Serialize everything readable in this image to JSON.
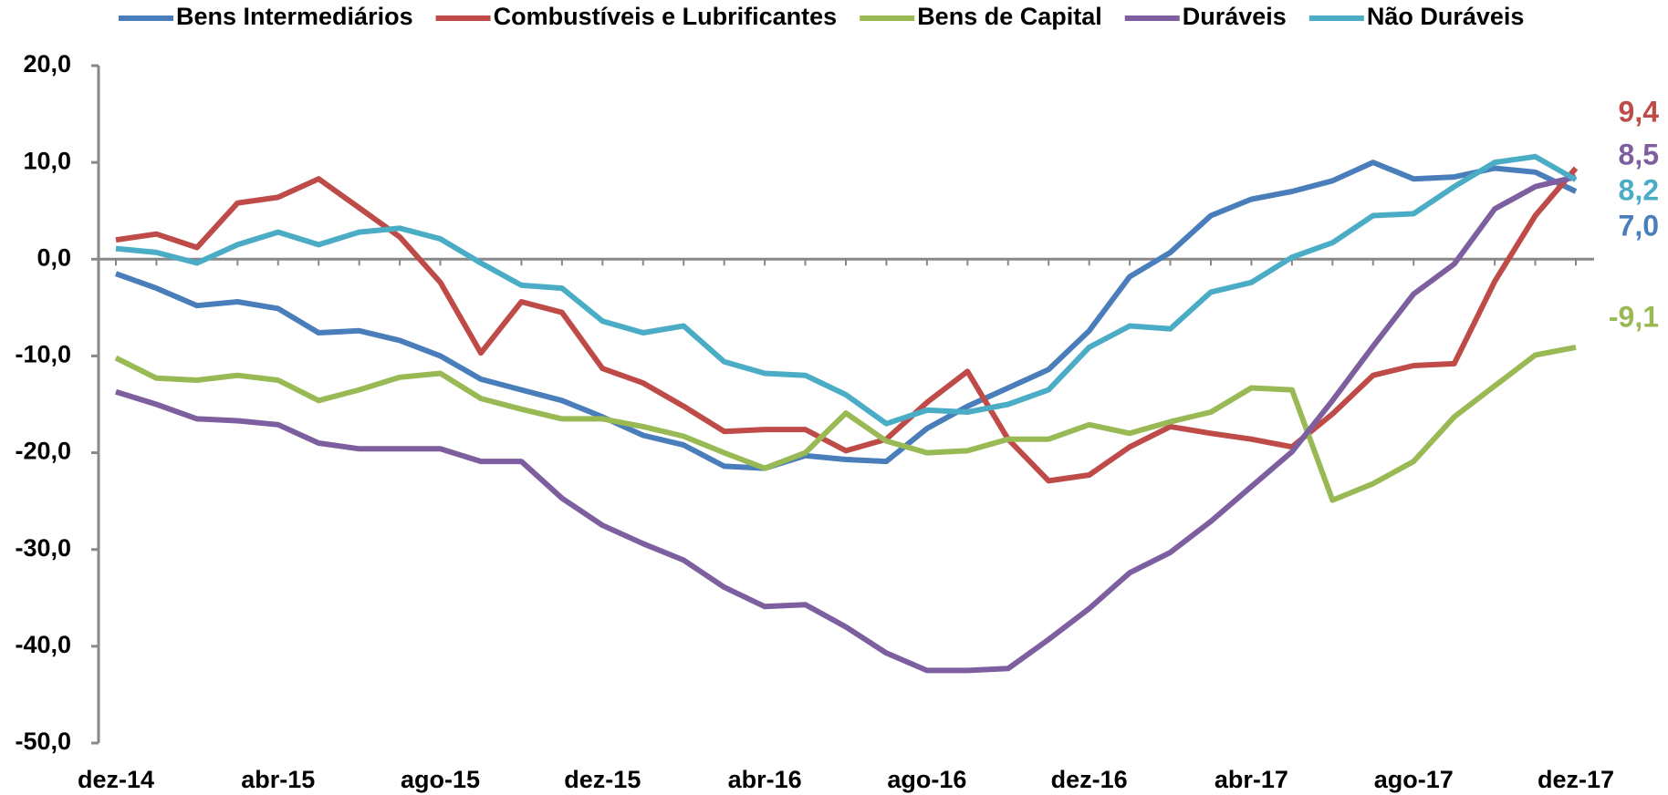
{
  "chart_data": {
    "type": "line",
    "categories": [
      "dez-14",
      null,
      null,
      null,
      "abr-15",
      null,
      null,
      null,
      "ago-15",
      null,
      null,
      null,
      "dez-15",
      null,
      null,
      null,
      "abr-16",
      null,
      null,
      null,
      "ago-16",
      null,
      null,
      null,
      "dez-16",
      null,
      null,
      null,
      "abr-17",
      null,
      null,
      null,
      "ago-17",
      null,
      null,
      null,
      "dez-17"
    ],
    "series": [
      {
        "name": "Bens Intermediários",
        "color": "#4a7ebb",
        "values": [
          -1.5,
          -3,
          -4.8,
          -4.4,
          -5.1,
          -7.6,
          -7.4,
          -8.4,
          -10,
          -12.4,
          -13.5,
          -14.6,
          -16.3,
          -18.2,
          -19.2,
          -21.4,
          -21.6,
          -20.3,
          -20.7,
          -20.9,
          -17.5,
          -15.2,
          -13.3,
          -11.4,
          -7.4,
          -1.8,
          0.7,
          4.5,
          6.2,
          7,
          8.1,
          10,
          8.3,
          8.5,
          9.4,
          9,
          7.0
        ],
        "value_labels": [
          null,
          null,
          null,
          null,
          null,
          null,
          null,
          null,
          null,
          null,
          null,
          null,
          null,
          null,
          null,
          null,
          null,
          null,
          null,
          null,
          null,
          null,
          null,
          null,
          null,
          null,
          null,
          null,
          null,
          null,
          null,
          null,
          null,
          null,
          null,
          null,
          "7,0"
        ]
      },
      {
        "name": "Combustíveis e Lubrificantes",
        "color": "#be4b48",
        "values": [
          2,
          2.6,
          1.2,
          5.8,
          6.4,
          8.3,
          5.3,
          2.3,
          -2.4,
          -9.7,
          -4.4,
          -5.5,
          -11.3,
          -12.8,
          -15.2,
          -17.8,
          -17.6,
          -17.6,
          -19.8,
          -18.6,
          -14.8,
          -11.6,
          -18.6,
          -22.9,
          -22.3,
          -19.4,
          -17.3,
          -18,
          -18.6,
          -19.4,
          -16,
          -12,
          -11,
          -10.8,
          -2.3,
          4.5,
          9.4
        ],
        "value_labels": [
          null,
          null,
          null,
          null,
          null,
          null,
          null,
          null,
          null,
          null,
          null,
          null,
          null,
          null,
          null,
          null,
          null,
          null,
          null,
          null,
          null,
          null,
          null,
          null,
          null,
          null,
          null,
          null,
          null,
          null,
          null,
          null,
          null,
          null,
          null,
          null,
          "9,4"
        ]
      },
      {
        "name": "Bens de Capital",
        "color": "#98b954",
        "values": [
          -10.2,
          -12.3,
          -12.5,
          -12,
          -12.5,
          -14.6,
          -13.5,
          -12.2,
          -11.8,
          -14.4,
          -15.5,
          -16.5,
          -16.5,
          -17.3,
          -18.3,
          -20,
          -21.6,
          -20,
          -15.9,
          -18.8,
          -20,
          -19.8,
          -18.6,
          -18.6,
          -17.1,
          -18,
          -16.8,
          -15.8,
          -13.3,
          -13.5,
          -24.9,
          -23.2,
          -20.9,
          -16.3,
          -13.1,
          -9.9,
          -9.1
        ],
        "value_labels": [
          null,
          null,
          null,
          null,
          null,
          null,
          null,
          null,
          null,
          null,
          null,
          null,
          null,
          null,
          null,
          null,
          null,
          null,
          null,
          null,
          null,
          null,
          null,
          null,
          null,
          null,
          null,
          null,
          null,
          null,
          null,
          null,
          null,
          null,
          null,
          null,
          "-9,1"
        ]
      },
      {
        "name": "Duráveis",
        "color": "#7d5fa0",
        "values": [
          -13.7,
          -15,
          -16.5,
          -16.7,
          -17.1,
          -19,
          -19.6,
          -19.6,
          -19.6,
          -20.9,
          -20.9,
          -24.7,
          -27.5,
          -29.4,
          -31.1,
          -33.9,
          -35.9,
          -35.7,
          -38,
          -40.7,
          -42.5,
          -42.5,
          -42.3,
          -39.3,
          -36.1,
          -32.4,
          -30.3,
          -27.1,
          -23.5,
          -19.9,
          -14.6,
          -9,
          -3.6,
          -0.5,
          5.2,
          7.5,
          8.5
        ],
        "value_labels": [
          null,
          null,
          null,
          null,
          null,
          null,
          null,
          null,
          null,
          null,
          null,
          null,
          null,
          null,
          null,
          null,
          null,
          null,
          null,
          null,
          null,
          null,
          null,
          null,
          null,
          null,
          null,
          null,
          null,
          null,
          null,
          null,
          null,
          null,
          null,
          null,
          "8,5"
        ]
      },
      {
        "name": "Não Duráveis",
        "color": "#4bacc6",
        "values": [
          1.1,
          0.7,
          -0.4,
          1.5,
          2.8,
          1.5,
          2.8,
          3.2,
          2.1,
          -0.4,
          -2.7,
          -3,
          -6.4,
          -7.6,
          -6.9,
          -10.6,
          -11.8,
          -12,
          -14,
          -17,
          -15.6,
          -15.8,
          -15,
          -13.5,
          -9.1,
          -6.9,
          -7.2,
          -3.4,
          -2.4,
          0.2,
          1.7,
          4.5,
          4.7,
          7.5,
          10,
          10.6,
          8.2
        ],
        "value_labels": [
          null,
          null,
          null,
          null,
          null,
          null,
          null,
          null,
          null,
          null,
          null,
          null,
          null,
          null,
          null,
          null,
          null,
          null,
          null,
          null,
          null,
          null,
          null,
          null,
          null,
          null,
          null,
          null,
          null,
          null,
          null,
          null,
          null,
          null,
          null,
          null,
          "8,2"
        ]
      }
    ],
    "ylim": [
      -50,
      20
    ],
    "yticks": [
      {
        "value": -50,
        "label": "-50,0"
      },
      {
        "value": -40,
        "label": "-40,0"
      },
      {
        "value": -30,
        "label": "-30,0"
      },
      {
        "value": -20,
        "label": "-20,0"
      },
      {
        "value": -10,
        "label": "-10,0"
      },
      {
        "value": 0,
        "label": "0,0"
      },
      {
        "value": 10,
        "label": "10,0"
      },
      {
        "value": 20,
        "label": "20,0"
      }
    ],
    "legend": "top"
  }
}
